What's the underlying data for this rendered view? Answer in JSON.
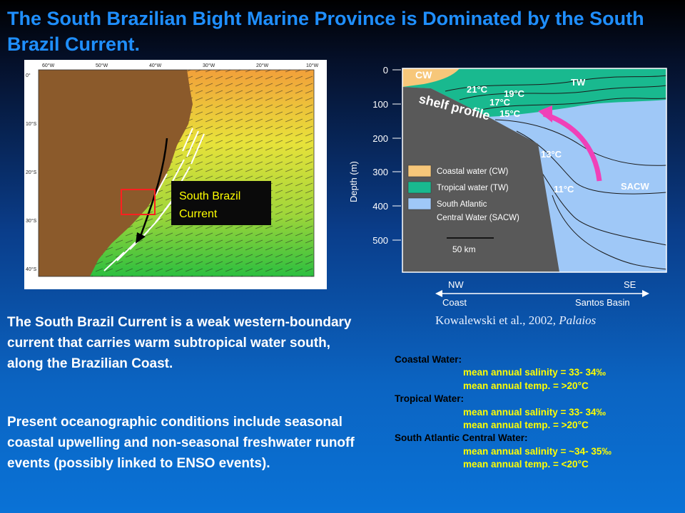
{
  "slide": {
    "title": "The South Brazilian Bight Marine Province is Dominated by the South Brazil Current."
  },
  "map": {
    "lon_labels": [
      "60°W",
      "50°W",
      "40°W",
      "30°W",
      "20°W",
      "10°W"
    ],
    "lat_labels": [
      "0°",
      "10°S",
      "20°S",
      "30°S",
      "40°S"
    ],
    "callout": {
      "line1": "South Brazil",
      "line2": "Current"
    },
    "colors": {
      "land": "#8b5a2b",
      "sea_warm": "#e8e23a",
      "sea_cool": "#2bbf3f",
      "highlight": "#ff2020"
    }
  },
  "section": {
    "depth_ticks": [
      "0",
      "100",
      "200",
      "300",
      "400",
      "500"
    ],
    "depth_label": "Depth (m)",
    "labels": {
      "cw": "CW",
      "tw": "TW",
      "sacw": "SACW",
      "shelf": "shelf profile",
      "t21": "21°C",
      "t19": "19°C",
      "t17": "17°C",
      "t15": "15°C",
      "t13": "13°C",
      "t11": "11°C"
    },
    "legend": [
      {
        "label": "Coastal water (CW)",
        "color": "#f7c77a"
      },
      {
        "label": "Tropical water (TW)",
        "color": "#19b98f"
      },
      {
        "label": "South Atlantic",
        "label2": "Central Water (SACW)",
        "color": "#9fc8f7"
      }
    ],
    "scale": "50 km",
    "axis": {
      "left_dir": "NW",
      "right_dir": "SE",
      "left_name": "Coast",
      "right_name": "Santos Basin"
    },
    "arrow_color": "#f040b8"
  },
  "citation": {
    "authors": "Kowalewski et al., 2002,",
    "journal": "Palaios"
  },
  "body": {
    "paragraph1": "The South Brazil Current is a weak western-boundary current that carries warm subtropical water south, along the Brazilian Coast.",
    "paragraph2": "Present oceanographic conditions include seasonal coastal upwelling and non-seasonal freshwater runoff events (possibly linked to ENSO events)."
  },
  "facts": [
    {
      "title": "Coastal Water:",
      "salinity": "mean annual salinity = 33- 34‰",
      "temp": "mean annual temp. = >20°C"
    },
    {
      "title": "Tropical Water:",
      "salinity": "mean annual salinity = 33- 34‰",
      "temp": "mean annual temp. = >20°C"
    },
    {
      "title": "South Atlantic Central Water:",
      "salinity": "mean annual salinity = ~34- 35‰",
      "temp": "mean annual temp. = <20°C"
    }
  ]
}
